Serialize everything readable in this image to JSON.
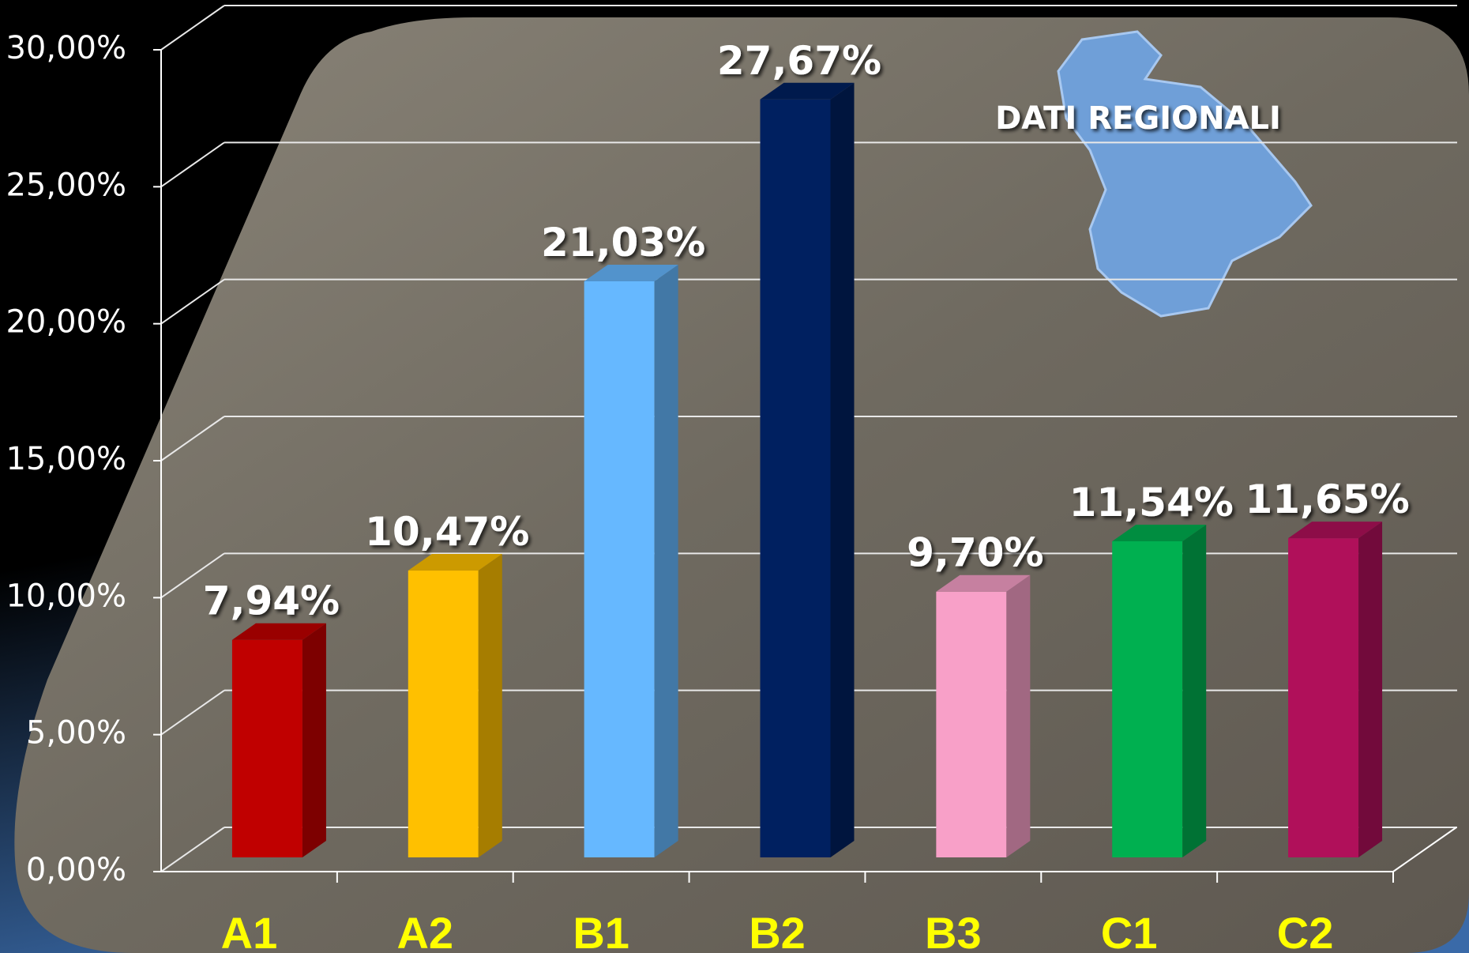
{
  "chart_data": {
    "type": "bar3d",
    "title": "DATI REGIONALI",
    "categories": [
      "A1",
      "A2",
      "B1",
      "B2",
      "B3",
      "C1",
      "C2"
    ],
    "values": [
      7.94,
      10.47,
      21.03,
      27.67,
      9.7,
      11.54,
      11.65
    ],
    "value_labels": [
      "7,94%",
      "10,47%",
      "21,03%",
      "27,67%",
      "9,70%",
      "11,54%",
      "11,65%"
    ],
    "colors": [
      "#c00000",
      "#ffc000",
      "#66b8ff",
      "#002060",
      "#f8a0c8",
      "#00b050",
      "#b0105a"
    ],
    "ylim": [
      0,
      30
    ],
    "yticks": [
      {
        "value": 0,
        "label": "0,00%"
      },
      {
        "value": 5,
        "label": "5,00%"
      },
      {
        "value": 10,
        "label": "10,00%"
      },
      {
        "value": 15,
        "label": "15,00%"
      },
      {
        "value": 20,
        "label": "20,00%"
      },
      {
        "value": 25,
        "label": "25,00%"
      },
      {
        "value": 30,
        "label": "30,00%"
      }
    ],
    "grid": true
  }
}
